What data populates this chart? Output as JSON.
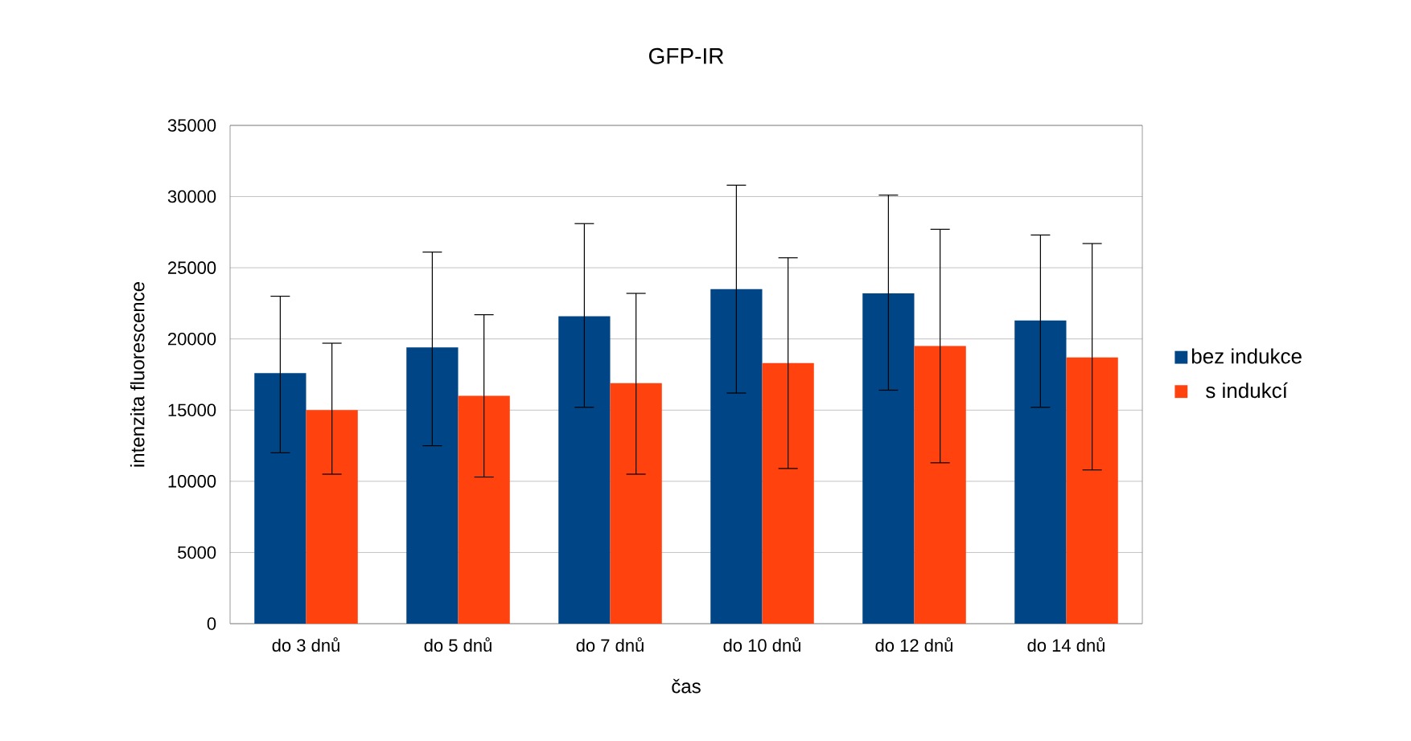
{
  "chart_data": {
    "type": "bar",
    "title": "GFP-IR",
    "xlabel": "čas",
    "ylabel": "intenzita fluorescence",
    "categories": [
      "do 3 dnů",
      "do 5 dnů",
      "do 7 dnů",
      "do 10 dnů",
      "do 12 dnů",
      "do 14 dnů"
    ],
    "series": [
      {
        "name": "bez indukce",
        "color": "#004586",
        "values": [
          17600,
          19400,
          21600,
          23500,
          23200,
          21300
        ],
        "errors": [
          [
            12000,
            23000
          ],
          [
            12500,
            26100
          ],
          [
            15200,
            28100
          ],
          [
            16200,
            30800
          ],
          [
            16400,
            30100
          ],
          [
            15200,
            27300
          ]
        ]
      },
      {
        "name": "s indukcí",
        "color": "#ff420e",
        "values": [
          15000,
          16000,
          16900,
          18300,
          19500,
          18700
        ],
        "errors": [
          [
            10500,
            19700
          ],
          [
            10300,
            21700
          ],
          [
            10500,
            23200
          ],
          [
            10900,
            25700
          ],
          [
            11300,
            27700
          ],
          [
            10800,
            26700
          ]
        ]
      }
    ],
    "ylim": [
      0,
      35000
    ],
    "yticks": [
      0,
      5000,
      10000,
      15000,
      20000,
      25000,
      30000,
      35000
    ],
    "grid": "y",
    "legend": "right"
  }
}
